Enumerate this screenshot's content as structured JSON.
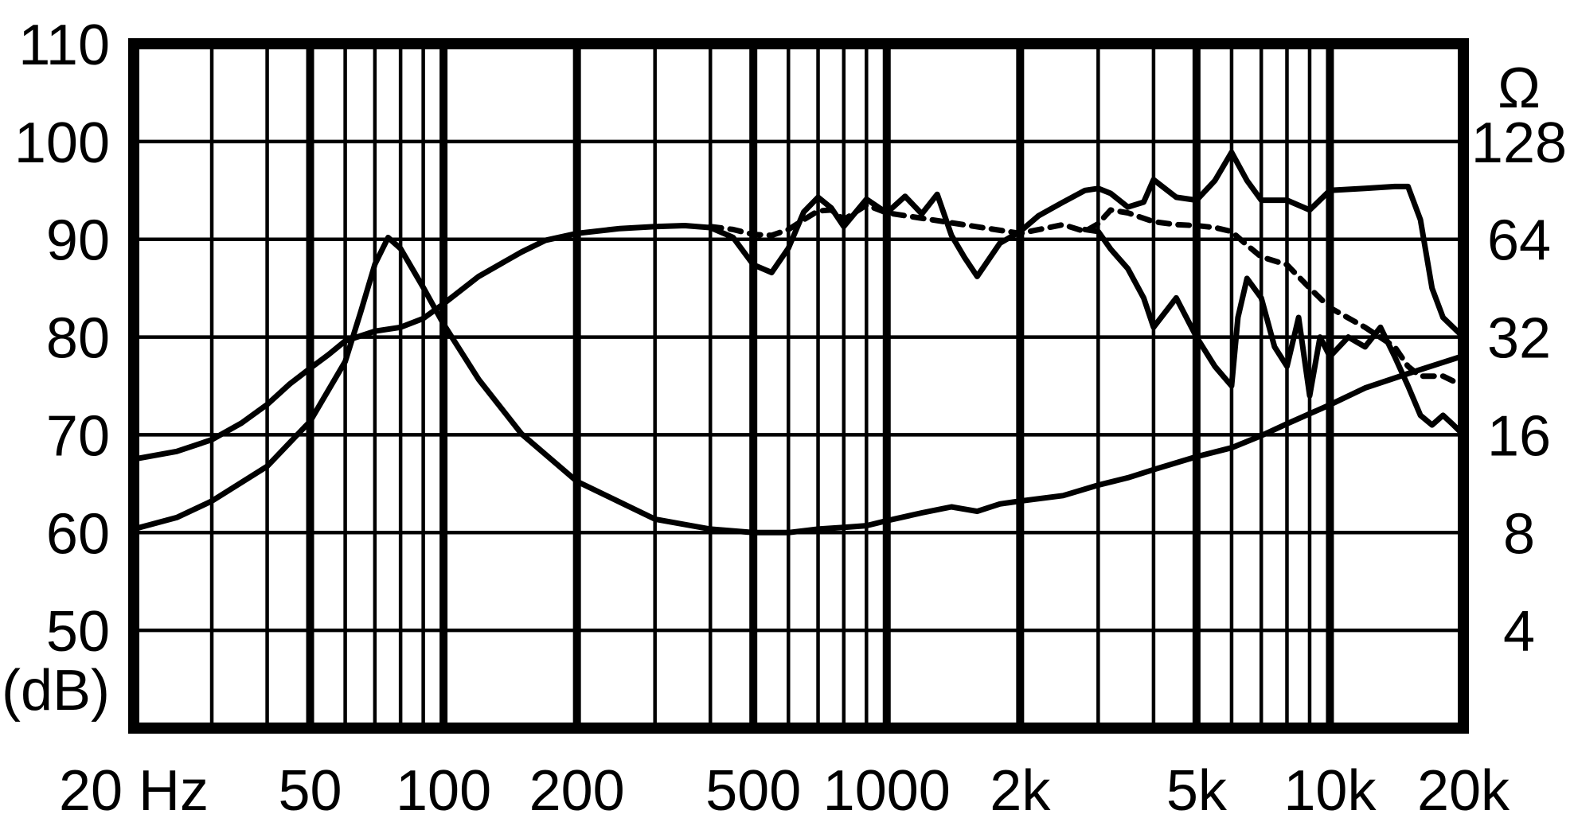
{
  "chart_data": {
    "type": "line",
    "title": "",
    "x_scale": "log",
    "xlim": [
      20,
      20000
    ],
    "ylim": [
      40,
      110
    ],
    "y2_scale": "log2",
    "y2lim": [
      2,
      256
    ],
    "grid": true,
    "x_ticks": [
      {
        "value": 20,
        "label": "20 Hz"
      },
      {
        "value": 50,
        "label": "50"
      },
      {
        "value": 100,
        "label": "100"
      },
      {
        "value": 200,
        "label": "200"
      },
      {
        "value": 500,
        "label": "500"
      },
      {
        "value": 1000,
        "label": "1000"
      },
      {
        "value": 2000,
        "label": "2k"
      },
      {
        "value": 5000,
        "label": "5k"
      },
      {
        "value": 10000,
        "label": "10k"
      },
      {
        "value": 20000,
        "label": "20k"
      }
    ],
    "y_ticks": [
      {
        "value": 110,
        "label": "110"
      },
      {
        "value": 100,
        "label": "100"
      },
      {
        "value": 90,
        "label": "90"
      },
      {
        "value": 80,
        "label": "80"
      },
      {
        "value": 70,
        "label": "70"
      },
      {
        "value": 60,
        "label": "60"
      },
      {
        "value": 50,
        "label": "50"
      }
    ],
    "y_unit_label": "(dB)",
    "y2_unit_label": "Ω",
    "y2_ticks": [
      {
        "value": 128,
        "label": "128"
      },
      {
        "value": 64,
        "label": "64"
      },
      {
        "value": 32,
        "label": "32"
      },
      {
        "value": 16,
        "label": "16"
      },
      {
        "value": 8,
        "label": "8"
      },
      {
        "value": 4,
        "label": "4"
      }
    ],
    "series": [
      {
        "style": "solid",
        "axis": "left",
        "x": [
          20,
          25,
          30,
          35,
          40,
          45,
          50,
          55,
          60,
          70,
          80,
          90,
          100,
          120,
          150,
          170,
          200,
          250,
          300,
          350,
          400,
          450,
          500,
          550,
          600,
          650,
          700,
          750,
          800,
          900,
          1000,
          1100,
          1200,
          1300,
          1400,
          1500,
          1600,
          1800,
          2000,
          2200,
          2500,
          2800,
          3000,
          3200,
          3500,
          3800,
          4000,
          4500,
          5000,
          5500,
          6000,
          6500,
          7000,
          8000,
          9000,
          10000,
          12000,
          14000,
          15000,
          16000,
          17000,
          18000,
          20000
        ],
        "y": [
          67.5,
          68.3,
          69.5,
          71.2,
          73.1,
          75.2,
          76.8,
          78.2,
          79.6,
          80.6,
          81.0,
          81.9,
          83.4,
          86.2,
          88.7,
          89.9,
          90.6,
          91.1,
          91.3,
          91.4,
          91.2,
          90.2,
          87.4,
          86.6,
          89.1,
          92.8,
          94.3,
          93.2,
          91.3,
          94.1,
          92.7,
          94.4,
          92.6,
          94.6,
          90.4,
          88.1,
          86.2,
          89.6,
          90.8,
          92.4,
          93.8,
          95.0,
          95.2,
          94.7,
          93.3,
          93.8,
          96.1,
          94.3,
          94.0,
          96.0,
          98.9,
          96.0,
          94.0,
          94.0,
          93.0,
          95.0,
          95.2,
          95.4,
          95.4,
          92.0,
          85.0,
          82.0,
          80.0
        ]
      },
      {
        "style": "solid",
        "axis": "right",
        "x": [
          20,
          25,
          30,
          40,
          50,
          60,
          65,
          70,
          75,
          80,
          90,
          100,
          120,
          150,
          200,
          300,
          400,
          500,
          600,
          700,
          800,
          900,
          1000,
          1200,
          1400,
          1600,
          1800,
          2000,
          2500,
          3000,
          3500,
          4000,
          5000,
          6000,
          7000,
          8000,
          10000,
          12000,
          15000,
          20000
        ],
        "y": [
          8.2,
          8.9,
          10.0,
          12.8,
          17.6,
          26.9,
          38.1,
          53.6,
          64.8,
          59.9,
          45.5,
          35.1,
          23.7,
          16.1,
          11.5,
          8.8,
          8.2,
          8.0,
          8.0,
          8.2,
          8.3,
          8.4,
          8.7,
          9.2,
          9.6,
          9.3,
          9.8,
          10.0,
          10.4,
          11.2,
          11.8,
          12.5,
          13.7,
          14.6,
          15.9,
          17.3,
          19.8,
          22.3,
          24.7,
          28.0
        ]
      },
      {
        "style": "dashed",
        "axis": "left",
        "x": [
          400,
          450,
          500,
          550,
          600,
          650,
          700,
          750,
          800,
          900,
          1000,
          2000,
          2500,
          2800,
          3000,
          3200,
          3500,
          4000,
          4500,
          5000,
          5500,
          6000,
          6500,
          7000,
          8000,
          9000,
          10000,
          12000,
          14000,
          15000,
          16000,
          17000,
          18000,
          20000
        ],
        "y": [
          91.3,
          91.0,
          90.5,
          90.4,
          91.0,
          92.0,
          92.9,
          93.0,
          92.0,
          93.5,
          92.7,
          90.6,
          91.5,
          90.8,
          91.6,
          93.0,
          92.7,
          91.8,
          91.5,
          91.4,
          91.2,
          90.8,
          89.4,
          88.2,
          87.4,
          85.0,
          83.0,
          81.0,
          79.0,
          77.0,
          76.0,
          76.0,
          76.0,
          75.0
        ]
      },
      {
        "style": "solid",
        "axis": "left",
        "x": [
          2800,
          3000,
          3200,
          3500,
          3800,
          4000,
          4500,
          5000,
          5500,
          6000,
          6200,
          6500,
          7000,
          7500,
          8000,
          8500,
          9000,
          9500,
          10000,
          11000,
          12000,
          13000,
          14000,
          15000,
          16000,
          17000,
          18000,
          19000,
          20000
        ],
        "y": [
          91.0,
          90.8,
          89.0,
          87.0,
          84.0,
          81.0,
          84.0,
          80.0,
          77.0,
          75.0,
          82.0,
          86.0,
          84.0,
          79.0,
          77.0,
          82.0,
          74.0,
          80.0,
          78.0,
          80.0,
          79.0,
          81.0,
          78.0,
          75.0,
          72.0,
          71.0,
          72.0,
          71.0,
          70.0
        ]
      }
    ]
  }
}
